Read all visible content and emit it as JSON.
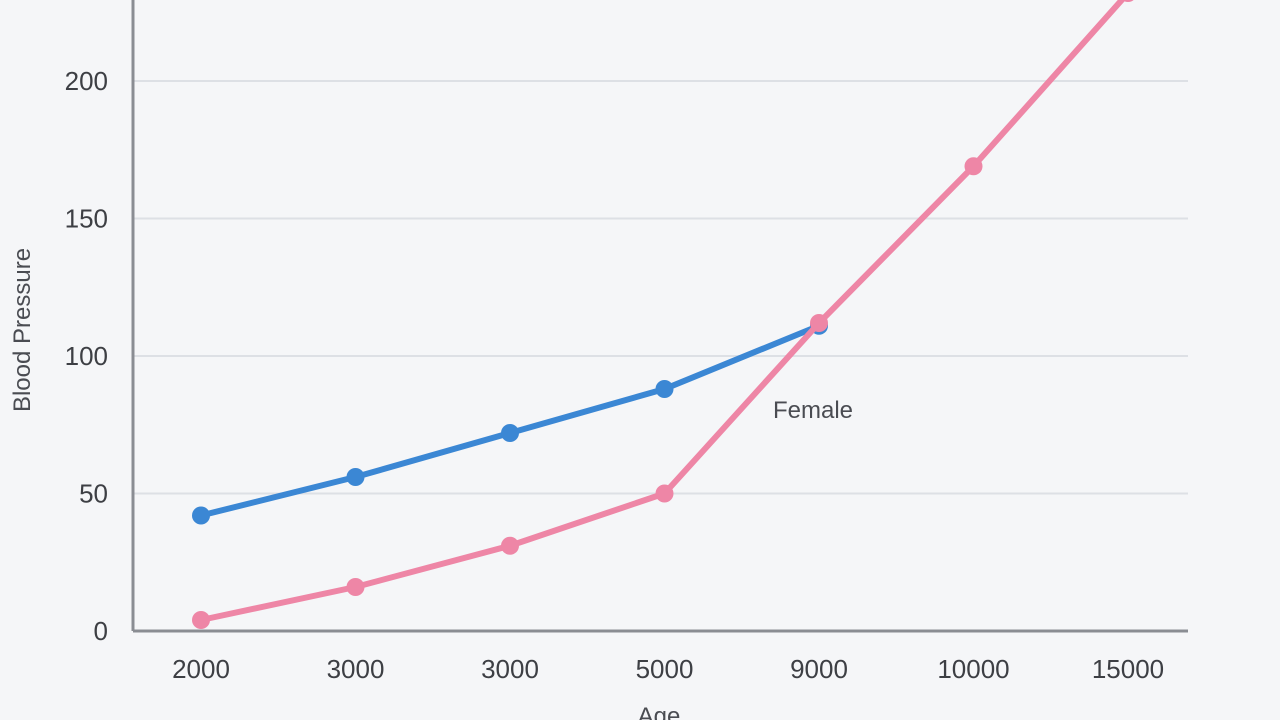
{
  "chart_data": {
    "type": "line",
    "title": "",
    "xlabel": "Age",
    "ylabel": "Blood Pressure",
    "x_tick_labels": [
      "2000",
      "3000",
      "3000",
      "5000",
      "9000",
      "10000",
      "15000"
    ],
    "y_ticks": [
      0,
      50,
      100,
      150,
      200
    ],
    "ylim": [
      0,
      220
    ],
    "grid": "horizontal",
    "legend": "none",
    "series": [
      {
        "color": "#3b87d4",
        "values": [
          42,
          56,
          72,
          88,
          111
        ]
      },
      {
        "name": "Female",
        "color": "#ee86a6",
        "values": [
          4,
          16,
          31,
          50,
          112,
          169,
          232
        ]
      }
    ],
    "series_label": "Female"
  }
}
